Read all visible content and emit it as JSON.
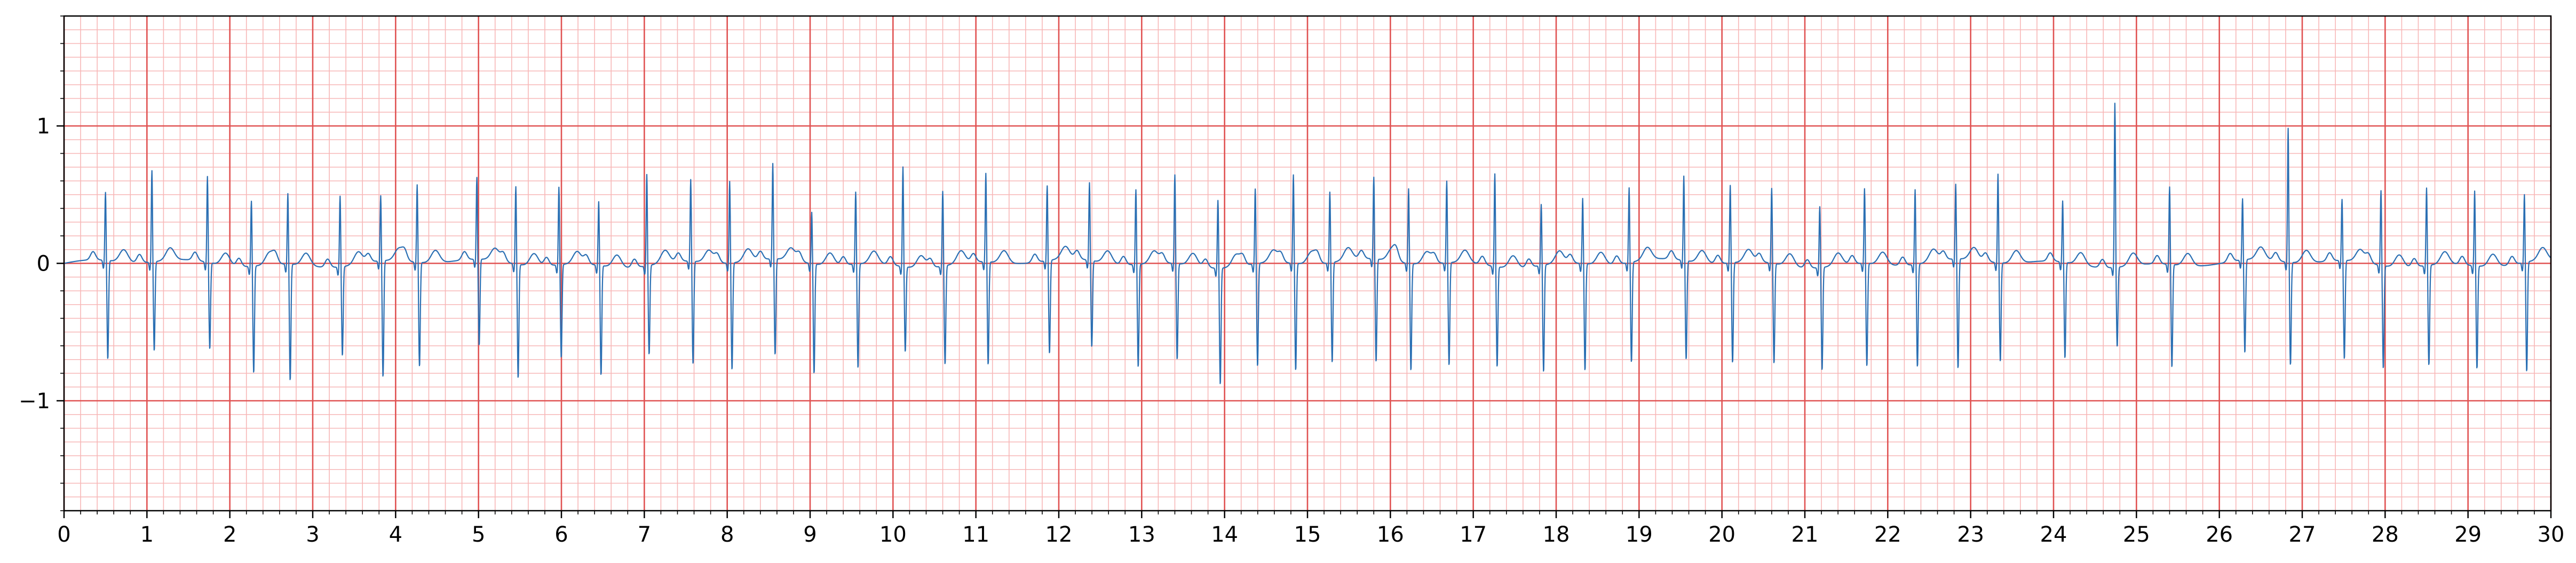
{
  "chart_data": {
    "type": "line",
    "title": "",
    "xlabel": "",
    "ylabel": "",
    "xlim": [
      0,
      30
    ],
    "ylim": [
      -1.8,
      1.8
    ],
    "x_ticks": [
      0,
      1,
      2,
      3,
      4,
      5,
      6,
      7,
      8,
      9,
      10,
      11,
      12,
      13,
      14,
      15,
      16,
      17,
      18,
      19,
      20,
      21,
      22,
      23,
      24,
      25,
      26,
      27,
      28,
      29,
      30
    ],
    "x_tick_labels": [
      "0",
      "1",
      "2",
      "3",
      "4",
      "5",
      "6",
      "7",
      "8",
      "9",
      "10",
      "11",
      "12",
      "13",
      "14",
      "15",
      "16",
      "17",
      "18",
      "19",
      "20",
      "21",
      "22",
      "23",
      "24",
      "25",
      "26",
      "27",
      "28",
      "29",
      "30"
    ],
    "y_ticks": [
      -1,
      0,
      1
    ],
    "y_tick_labels": [
      "−1",
      "0",
      "1"
    ],
    "grid": {
      "major": true,
      "minor": true,
      "major_x_step": 1,
      "major_y_step": 1,
      "minor_x_step": 0.2,
      "minor_y_step": 0.1,
      "major_color": "#e05252",
      "minor_color": "#f7b7b7"
    },
    "line_color": "#2a6fb3",
    "beats": [
      {
        "t": 0.5,
        "r": 0.5,
        "s": -0.72
      },
      {
        "t": 1.06,
        "r": 0.67,
        "s": -0.65
      },
      {
        "t": 1.73,
        "r": 0.63,
        "s": -0.63
      },
      {
        "t": 2.26,
        "r": 0.48,
        "s": -0.78
      },
      {
        "t": 2.7,
        "r": 0.52,
        "s": -0.85
      },
      {
        "t": 3.33,
        "r": 0.52,
        "s": -0.65
      },
      {
        "t": 3.82,
        "r": 0.48,
        "s": -0.85
      },
      {
        "t": 4.26,
        "r": 0.57,
        "s": -0.76
      },
      {
        "t": 4.98,
        "r": 0.6,
        "s": -0.63
      },
      {
        "t": 5.45,
        "r": 0.57,
        "s": -0.83
      },
      {
        "t": 5.97,
        "r": 0.57,
        "s": -0.68
      },
      {
        "t": 6.45,
        "r": 0.47,
        "s": -0.8
      },
      {
        "t": 7.03,
        "r": 0.67,
        "s": -0.65
      },
      {
        "t": 7.56,
        "r": 0.6,
        "s": -0.75
      },
      {
        "t": 8.03,
        "r": 0.6,
        "s": -0.78
      },
      {
        "t": 8.55,
        "r": 0.7,
        "s": -0.7
      },
      {
        "t": 9.02,
        "r": 0.38,
        "s": -0.8
      },
      {
        "t": 9.55,
        "r": 0.53,
        "s": -0.76
      },
      {
        "t": 10.12,
        "r": 0.73,
        "s": -0.62
      },
      {
        "t": 10.6,
        "r": 0.55,
        "s": -0.72
      },
      {
        "t": 11.12,
        "r": 0.65,
        "s": -0.75
      },
      {
        "t": 11.86,
        "r": 0.55,
        "s": -0.68
      },
      {
        "t": 12.37,
        "r": 0.57,
        "s": -0.63
      },
      {
        "t": 12.93,
        "r": 0.55,
        "s": -0.75
      },
      {
        "t": 13.4,
        "r": 0.65,
        "s": -0.7
      },
      {
        "t": 13.92,
        "r": 0.5,
        "s": -0.85
      },
      {
        "t": 14.37,
        "r": 0.55,
        "s": -0.75
      },
      {
        "t": 14.83,
        "r": 0.65,
        "s": -0.78
      },
      {
        "t": 15.27,
        "r": 0.52,
        "s": -0.73
      },
      {
        "t": 15.8,
        "r": 0.6,
        "s": -0.75
      },
      {
        "t": 16.22,
        "r": 0.55,
        "s": -0.78
      },
      {
        "t": 16.68,
        "r": 0.6,
        "s": -0.75
      },
      {
        "t": 17.26,
        "r": 0.68,
        "s": -0.73
      },
      {
        "t": 17.82,
        "r": 0.45,
        "s": -0.78
      },
      {
        "t": 18.32,
        "r": 0.48,
        "s": -0.78
      },
      {
        "t": 18.88,
        "r": 0.55,
        "s": -0.73
      },
      {
        "t": 19.54,
        "r": 0.62,
        "s": -0.72
      },
      {
        "t": 20.1,
        "r": 0.57,
        "s": -0.73
      },
      {
        "t": 20.6,
        "r": 0.55,
        "s": -0.73
      },
      {
        "t": 21.18,
        "r": 0.45,
        "s": -0.75
      },
      {
        "t": 21.72,
        "r": 0.55,
        "s": -0.75
      },
      {
        "t": 22.33,
        "r": 0.55,
        "s": -0.75
      },
      {
        "t": 22.82,
        "r": 0.55,
        "s": -0.8
      },
      {
        "t": 23.33,
        "r": 0.65,
        "s": -0.72
      },
      {
        "t": 24.11,
        "r": 0.45,
        "s": -0.7
      },
      {
        "t": 24.74,
        "r": 1.2,
        "s": -0.58
      },
      {
        "t": 25.4,
        "r": 0.57,
        "s": -0.75
      },
      {
        "t": 26.28,
        "r": 0.45,
        "s": -0.68
      },
      {
        "t": 26.83,
        "r": 0.98,
        "s": -0.75
      },
      {
        "t": 27.48,
        "r": 0.45,
        "s": -0.72
      },
      {
        "t": 27.95,
        "r": 0.55,
        "s": -0.75
      },
      {
        "t": 28.5,
        "r": 0.57,
        "s": -0.73
      },
      {
        "t": 29.08,
        "r": 0.55,
        "s": -0.75
      },
      {
        "t": 29.68,
        "r": 0.5,
        "s": -0.8
      }
    ]
  }
}
